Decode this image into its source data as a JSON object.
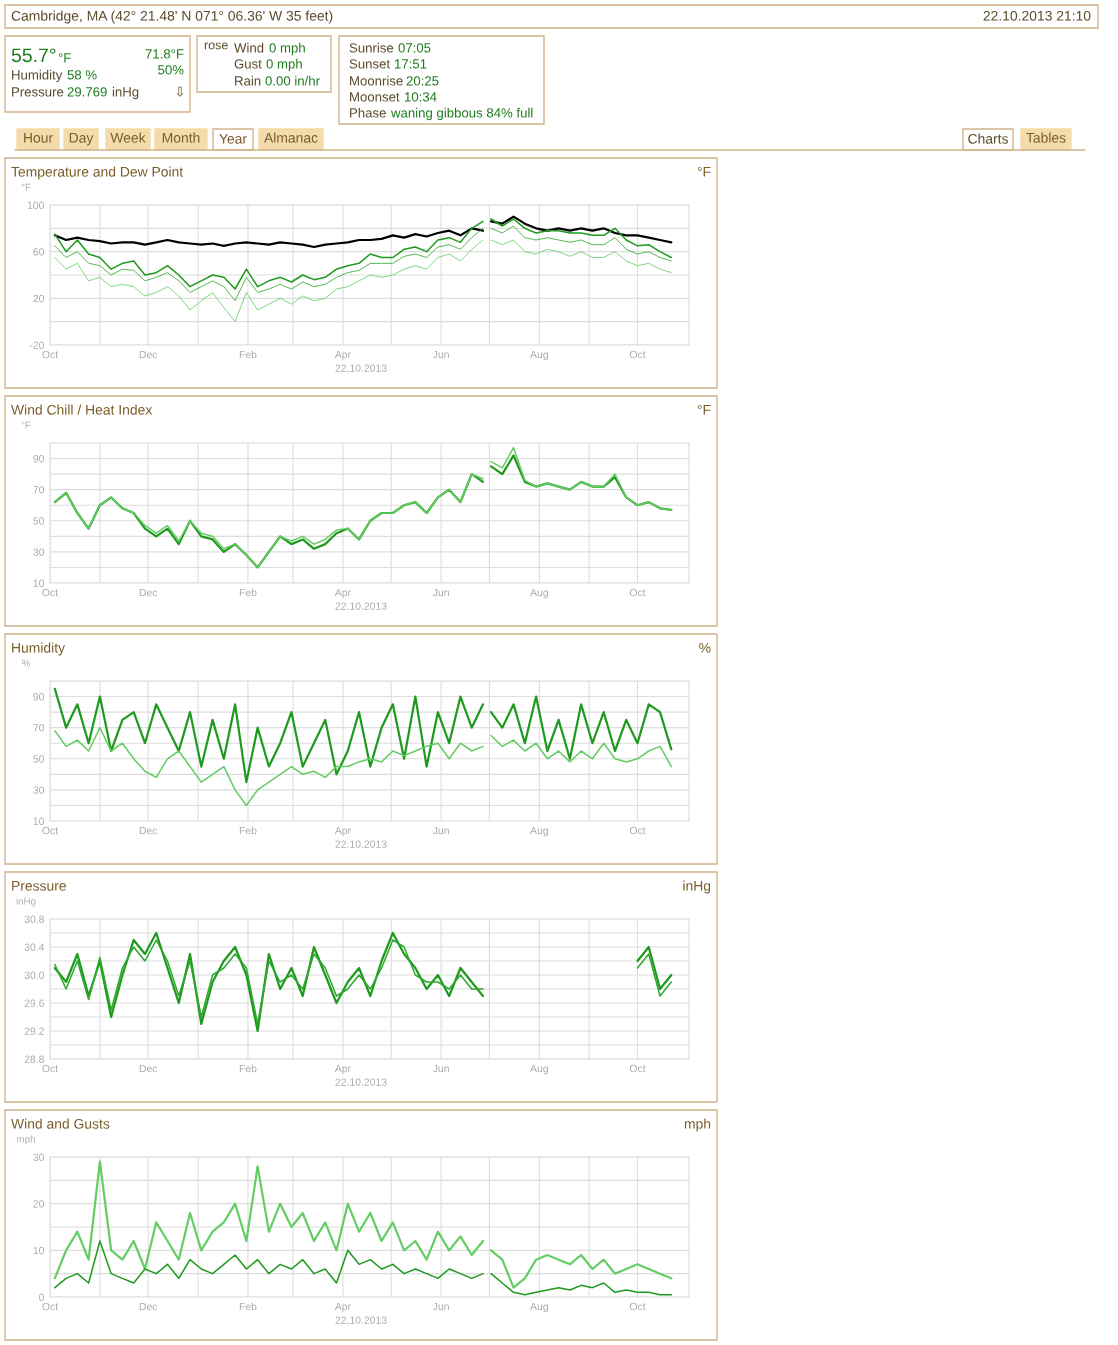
{
  "chart_data": [
    {
      "type": "other",
      "annotations": [
        "Cambridge, MA (42° 21.48' N 071° 06.36' W 35 feet)",
        "22.10.2013 21:10",
        "55.7°",
        "°F",
        "71.8°F",
        "Humidity",
        "58 %",
        "50%",
        "Pressure",
        "29.769",
        "inHg",
        "⇩",
        "rose",
        "Wind",
        "0 mph",
        "Gust",
        "0 mph",
        "Rain",
        "0.00 in/hr",
        "Sunrise",
        "07:05",
        "Sunset",
        "17:51",
        "Moonrise",
        "20:25",
        "Moonset",
        "10:34",
        "Phase",
        "waning gibbous 84% full",
        "Hour",
        "Day",
        "Week",
        "Month",
        "Year",
        "Almanac",
        "Charts",
        "Tables"
      ]
    },
    {
      "type": "line",
      "title": "Temperature and Dew Point",
      "ylabel": "°F",
      "xlabel": "22.10.2013",
      "annotations": [
        "°F"
      ],
      "grid": true,
      "x": [
        "2012-10-04",
        "2012-10-11",
        "2012-10-18",
        "2012-10-25",
        "2012-11-01",
        "2012-11-08",
        "2012-11-15",
        "2012-11-22",
        "2012-11-29",
        "2012-12-06",
        "2012-12-13",
        "2012-12-20",
        "2012-12-27",
        "2013-01-03",
        "2013-01-10",
        "2013-01-17",
        "2013-01-24",
        "2013-01-31",
        "2013-02-07",
        "2013-02-14",
        "2013-02-21",
        "2013-02-28",
        "2013-03-07",
        "2013-03-14",
        "2013-03-21",
        "2013-03-28",
        "2013-04-04",
        "2013-04-11",
        "2013-04-18",
        "2013-04-25",
        "2013-05-02",
        "2013-05-09",
        "2013-05-16",
        "2013-05-23",
        "2013-05-30",
        "2013-06-06",
        "2013-06-13",
        "2013-06-20",
        "2013-06-27",
        "2013-06-29",
        "2013-07-02",
        "2013-07-09",
        "2013-07-16",
        "2013-07-23",
        "2013-07-30",
        "2013-08-06",
        "2013-08-13",
        "2013-08-20",
        "2013-08-27",
        "2013-09-03",
        "2013-09-10",
        "2013-09-17",
        "2013-09-24",
        "2013-10-01",
        "2013-10-08",
        "2013-10-15",
        "2013-10-22"
      ],
      "xlim": [
        "2012-10-01",
        "2013-11-02"
      ],
      "xticks": [
        {
          "value": "2012-10-01",
          "label": "Oct"
        },
        {
          "value": "2012-11-01",
          "label": null
        },
        {
          "value": "2012-12-01",
          "label": "Dec"
        },
        {
          "value": "2013-01-01",
          "label": null
        },
        {
          "value": "2013-02-01",
          "label": "Feb"
        },
        {
          "value": "2013-03-01",
          "label": null
        },
        {
          "value": "2013-04-01",
          "label": "Apr"
        },
        {
          "value": "2013-05-01",
          "label": null
        },
        {
          "value": "2013-06-01",
          "label": "Jun"
        },
        {
          "value": "2013-07-01",
          "label": null
        },
        {
          "value": "2013-08-01",
          "label": "Aug"
        },
        {
          "value": "2013-09-01",
          "label": null
        },
        {
          "value": "2013-10-01",
          "label": "Oct"
        }
      ],
      "ylim": [
        -20,
        100
      ],
      "yticks": [
        -20,
        {
          "value": 0,
          "label": null
        },
        20,
        {
          "value": 40,
          "label": null
        },
        60,
        {
          "value": 80,
          "label": null
        },
        100
      ],
      "series": [
        {
          "color": "#000000",
          "values": [
            74,
            70,
            72,
            70,
            69,
            67,
            68,
            68,
            66,
            68,
            70,
            68,
            67,
            66,
            67,
            65,
            67,
            68,
            67,
            66,
            68,
            67,
            66,
            64,
            66,
            67,
            68,
            70,
            70,
            71,
            74,
            72,
            75,
            73,
            76,
            78,
            74,
            80,
            78,
            null,
            86,
            84,
            90,
            84,
            80,
            78,
            80,
            78,
            80,
            78,
            80,
            76,
            74,
            74,
            72,
            70,
            68
          ]
        },
        {
          "color": "#1f9a1f",
          "values": [
            75,
            60,
            70,
            58,
            55,
            45,
            50,
            52,
            40,
            42,
            48,
            40,
            30,
            35,
            40,
            38,
            28,
            45,
            30,
            35,
            38,
            34,
            40,
            36,
            38,
            45,
            48,
            50,
            58,
            55,
            55,
            62,
            64,
            60,
            70,
            72,
            68,
            80,
            86,
            null,
            88,
            82,
            88,
            80,
            76,
            78,
            78,
            76,
            76,
            74,
            74,
            80,
            70,
            65,
            66,
            60,
            55
          ]
        },
        {
          "color": "#33aa33",
          "values": [
            65,
            55,
            60,
            50,
            48,
            40,
            45,
            44,
            35,
            38,
            42,
            35,
            25,
            30,
            35,
            30,
            18,
            38,
            25,
            28,
            32,
            28,
            34,
            30,
            32,
            38,
            42,
            44,
            50,
            50,
            50,
            56,
            58,
            55,
            64,
            66,
            62,
            72,
            80,
            null,
            80,
            76,
            82,
            72,
            70,
            72,
            70,
            68,
            70,
            66,
            66,
            72,
            62,
            58,
            60,
            55,
            52
          ]
        },
        {
          "color": "#66cc66",
          "values": [
            55,
            45,
            50,
            35,
            38,
            30,
            32,
            30,
            22,
            25,
            30,
            22,
            10,
            18,
            25,
            12,
            0,
            25,
            10,
            15,
            20,
            15,
            22,
            18,
            20,
            28,
            30,
            35,
            40,
            38,
            40,
            45,
            48,
            45,
            55,
            58,
            52,
            62,
            70,
            null,
            70,
            66,
            70,
            60,
            58,
            62,
            60,
            56,
            60,
            55,
            55,
            60,
            52,
            48,
            50,
            45,
            42
          ]
        }
      ]
    },
    {
      "type": "line",
      "title": "Wind Chill / Heat Index",
      "ylabel": "°F",
      "xlabel": "22.10.2013",
      "annotations": [
        "°F"
      ],
      "grid": true,
      "x": [
        "2012-10-04",
        "2012-10-11",
        "2012-10-18",
        "2012-10-25",
        "2012-11-01",
        "2012-11-08",
        "2012-11-15",
        "2012-11-22",
        "2012-11-29",
        "2012-12-06",
        "2012-12-13",
        "2012-12-20",
        "2012-12-27",
        "2013-01-03",
        "2013-01-10",
        "2013-01-17",
        "2013-01-24",
        "2013-01-31",
        "2013-02-07",
        "2013-02-14",
        "2013-02-21",
        "2013-02-28",
        "2013-03-07",
        "2013-03-14",
        "2013-03-21",
        "2013-03-28",
        "2013-04-04",
        "2013-04-11",
        "2013-04-18",
        "2013-04-25",
        "2013-05-02",
        "2013-05-09",
        "2013-05-16",
        "2013-05-23",
        "2013-05-30",
        "2013-06-06",
        "2013-06-13",
        "2013-06-20",
        "2013-06-27",
        "2013-06-29",
        "2013-07-02",
        "2013-07-09",
        "2013-07-16",
        "2013-07-23",
        "2013-07-30",
        "2013-08-06",
        "2013-08-13",
        "2013-08-20",
        "2013-08-27",
        "2013-09-03",
        "2013-09-10",
        "2013-09-17",
        "2013-09-24",
        "2013-10-01",
        "2013-10-08",
        "2013-10-15",
        "2013-10-22"
      ],
      "xlim": [
        "2012-10-01",
        "2013-11-02"
      ],
      "xticks": [
        {
          "value": "2012-10-01",
          "label": "Oct"
        },
        {
          "value": "2012-11-01",
          "label": null
        },
        {
          "value": "2012-12-01",
          "label": "Dec"
        },
        {
          "value": "2013-01-01",
          "label": null
        },
        {
          "value": "2013-02-01",
          "label": "Feb"
        },
        {
          "value": "2013-03-01",
          "label": null
        },
        {
          "value": "2013-04-01",
          "label": "Apr"
        },
        {
          "value": "2013-05-01",
          "label": null
        },
        {
          "value": "2013-06-01",
          "label": "Jun"
        },
        {
          "value": "2013-07-01",
          "label": null
        },
        {
          "value": "2013-08-01",
          "label": "Aug"
        },
        {
          "value": "2013-09-01",
          "label": null
        },
        {
          "value": "2013-10-01",
          "label": "Oct"
        }
      ],
      "ylim": [
        10,
        100
      ],
      "yticks": [
        10,
        {
          "value": 20,
          "label": null
        },
        30,
        {
          "value": 40,
          "label": null
        },
        50,
        {
          "value": 60,
          "label": null
        },
        70,
        {
          "value": 80,
          "label": null
        },
        90,
        {
          "value": 100,
          "label": null
        }
      ],
      "series": [
        {
          "color": "#1f9a1f",
          "values": [
            62,
            68,
            55,
            45,
            60,
            65,
            58,
            55,
            45,
            40,
            45,
            35,
            50,
            40,
            38,
            30,
            35,
            28,
            20,
            30,
            40,
            35,
            38,
            32,
            35,
            42,
            45,
            38,
            50,
            55,
            55,
            60,
            62,
            55,
            65,
            70,
            62,
            80,
            75,
            null,
            85,
            80,
            92,
            75,
            72,
            74,
            72,
            70,
            75,
            72,
            72,
            78,
            65,
            60,
            62,
            58,
            57
          ]
        },
        {
          "color": "#66cc66",
          "values": [
            62,
            68,
            55,
            45,
            60,
            65,
            58,
            55,
            47,
            42,
            47,
            37,
            50,
            42,
            40,
            32,
            35,
            28,
            20,
            30,
            40,
            37,
            40,
            35,
            38,
            44,
            45,
            38,
            50,
            55,
            55,
            60,
            62,
            55,
            65,
            70,
            62,
            80,
            77,
            null,
            88,
            84,
            97,
            76,
            72,
            74,
            72,
            70,
            75,
            72,
            72,
            80,
            65,
            60,
            62,
            58,
            57
          ]
        }
      ]
    },
    {
      "type": "line",
      "title": "Humidity",
      "ylabel": "%",
      "xlabel": "22.10.2013",
      "annotations": [
        "%"
      ],
      "grid": true,
      "x": [
        "2012-10-04",
        "2012-10-11",
        "2012-10-18",
        "2012-10-25",
        "2012-11-01",
        "2012-11-08",
        "2012-11-15",
        "2012-11-22",
        "2012-11-29",
        "2012-12-06",
        "2012-12-13",
        "2012-12-20",
        "2012-12-27",
        "2013-01-03",
        "2013-01-10",
        "2013-01-17",
        "2013-01-24",
        "2013-01-31",
        "2013-02-07",
        "2013-02-14",
        "2013-02-21",
        "2013-02-28",
        "2013-03-07",
        "2013-03-14",
        "2013-03-21",
        "2013-03-28",
        "2013-04-04",
        "2013-04-11",
        "2013-04-18",
        "2013-04-25",
        "2013-05-02",
        "2013-05-09",
        "2013-05-16",
        "2013-05-23",
        "2013-05-30",
        "2013-06-06",
        "2013-06-13",
        "2013-06-20",
        "2013-06-27",
        "2013-06-29",
        "2013-07-02",
        "2013-07-09",
        "2013-07-16",
        "2013-07-23",
        "2013-07-30",
        "2013-08-06",
        "2013-08-13",
        "2013-08-20",
        "2013-08-27",
        "2013-09-03",
        "2013-09-10",
        "2013-09-17",
        "2013-09-24",
        "2013-10-01",
        "2013-10-08",
        "2013-10-15",
        "2013-10-22"
      ],
      "xlim": [
        "2012-10-01",
        "2013-11-02"
      ],
      "xticks": [
        {
          "value": "2012-10-01",
          "label": "Oct"
        },
        {
          "value": "2012-11-01",
          "label": null
        },
        {
          "value": "2012-12-01",
          "label": "Dec"
        },
        {
          "value": "2013-01-01",
          "label": null
        },
        {
          "value": "2013-02-01",
          "label": "Feb"
        },
        {
          "value": "2013-03-01",
          "label": null
        },
        {
          "value": "2013-04-01",
          "label": "Apr"
        },
        {
          "value": "2013-05-01",
          "label": null
        },
        {
          "value": "2013-06-01",
          "label": "Jun"
        },
        {
          "value": "2013-07-01",
          "label": null
        },
        {
          "value": "2013-08-01",
          "label": "Aug"
        },
        {
          "value": "2013-09-01",
          "label": null
        },
        {
          "value": "2013-10-01",
          "label": "Oct"
        }
      ],
      "ylim": [
        10,
        100
      ],
      "yticks": [
        10,
        {
          "value": 20,
          "label": null
        },
        30,
        {
          "value": 40,
          "label": null
        },
        50,
        {
          "value": 60,
          "label": null
        },
        70,
        {
          "value": 80,
          "label": null
        },
        90,
        {
          "value": 100,
          "label": null
        }
      ],
      "series": [
        {
          "color": "#1f9a1f",
          "values": [
            95,
            70,
            85,
            60,
            90,
            55,
            75,
            80,
            60,
            85,
            70,
            55,
            80,
            45,
            75,
            50,
            85,
            35,
            70,
            45,
            60,
            80,
            45,
            60,
            75,
            40,
            55,
            80,
            45,
            70,
            85,
            50,
            90,
            45,
            80,
            60,
            90,
            70,
            85,
            null,
            80,
            70,
            85,
            60,
            90,
            55,
            75,
            50,
            85,
            60,
            80,
            55,
            75,
            60,
            85,
            80,
            56
          ]
        },
        {
          "color": "#66cc66",
          "values": [
            68,
            58,
            62,
            55,
            70,
            55,
            60,
            50,
            42,
            38,
            50,
            55,
            45,
            35,
            40,
            45,
            30,
            20,
            30,
            35,
            40,
            45,
            40,
            42,
            38,
            45,
            45,
            48,
            50,
            48,
            55,
            52,
            55,
            58,
            60,
            50,
            60,
            55,
            58,
            null,
            65,
            58,
            62,
            55,
            60,
            50,
            55,
            48,
            55,
            50,
            60,
            50,
            48,
            50,
            55,
            58,
            45
          ]
        }
      ]
    },
    {
      "type": "line",
      "title": "Pressure",
      "ylabel": "inHg",
      "xlabel": "22.10.2013",
      "annotations": [
        "inHg"
      ],
      "grid": true,
      "x": [
        "2012-10-04",
        "2012-10-11",
        "2012-10-18",
        "2012-10-25",
        "2012-11-01",
        "2012-11-08",
        "2012-11-15",
        "2012-11-22",
        "2012-11-29",
        "2012-12-06",
        "2012-12-13",
        "2012-12-20",
        "2012-12-27",
        "2013-01-03",
        "2013-01-10",
        "2013-01-17",
        "2013-01-24",
        "2013-01-31",
        "2013-02-07",
        "2013-02-14",
        "2013-02-21",
        "2013-02-28",
        "2013-03-07",
        "2013-03-14",
        "2013-03-21",
        "2013-03-28",
        "2013-04-04",
        "2013-04-11",
        "2013-04-18",
        "2013-04-25",
        "2013-05-02",
        "2013-05-09",
        "2013-05-16",
        "2013-05-23",
        "2013-05-30",
        "2013-06-06",
        "2013-06-13",
        "2013-06-20",
        "2013-06-27",
        "2013-06-29",
        "2013-07-02",
        "2013-07-09",
        "2013-07-16",
        "2013-07-23",
        "2013-07-30",
        "2013-08-06",
        "2013-08-13",
        "2013-08-20",
        "2013-08-27",
        "2013-09-03",
        "2013-09-10",
        "2013-09-17",
        "2013-09-24",
        "2013-10-01",
        "2013-10-08",
        "2013-10-15",
        "2013-10-22"
      ],
      "xlim": [
        "2012-10-01",
        "2013-11-02"
      ],
      "xticks": [
        {
          "value": "2012-10-01",
          "label": "Oct"
        },
        {
          "value": "2012-11-01",
          "label": null
        },
        {
          "value": "2012-12-01",
          "label": "Dec"
        },
        {
          "value": "2013-01-01",
          "label": null
        },
        {
          "value": "2013-02-01",
          "label": "Feb"
        },
        {
          "value": "2013-03-01",
          "label": null
        },
        {
          "value": "2013-04-01",
          "label": "Apr"
        },
        {
          "value": "2013-05-01",
          "label": null
        },
        {
          "value": "2013-06-01",
          "label": "Jun"
        },
        {
          "value": "2013-07-01",
          "label": null
        },
        {
          "value": "2013-08-01",
          "label": "Aug"
        },
        {
          "value": "2013-09-01",
          "label": null
        },
        {
          "value": "2013-10-01",
          "label": "Oct"
        }
      ],
      "ylim": [
        28.8,
        30.8
      ],
      "yticks": [
        28.8,
        {
          "value": 29.0,
          "label": null
        },
        29.2,
        {
          "value": 29.4,
          "label": null
        },
        29.6,
        {
          "value": 29.8,
          "label": null
        },
        {
          "value": 30.0,
          "label": "30.0"
        },
        {
          "value": 30.2,
          "label": null
        },
        30.4,
        {
          "value": 30.6,
          "label": null
        },
        30.8
      ],
      "series": [
        {
          "color": "#1f9a1f",
          "values": [
            30.1,
            29.9,
            30.3,
            29.7,
            30.2,
            29.4,
            30.0,
            30.5,
            30.3,
            30.6,
            30.1,
            29.6,
            30.3,
            29.3,
            29.9,
            30.2,
            30.4,
            30.0,
            29.2,
            30.3,
            29.8,
            30.1,
            29.7,
            30.4,
            30.0,
            29.6,
            29.9,
            30.1,
            29.7,
            30.2,
            30.6,
            30.3,
            30.1,
            29.8,
            30.0,
            29.7,
            30.1,
            29.9,
            29.7,
            null,
            null,
            null,
            null,
            null,
            null,
            null,
            null,
            null,
            null,
            null,
            null,
            null,
            null,
            30.2,
            30.4,
            29.8,
            30.0
          ]
        },
        {
          "color": "#2ea82e",
          "values": [
            30.15,
            29.8,
            30.2,
            29.65,
            30.25,
            29.5,
            30.1,
            30.4,
            30.2,
            30.5,
            30.2,
            29.7,
            30.2,
            29.4,
            30.0,
            30.1,
            30.3,
            30.1,
            29.3,
            30.2,
            29.9,
            30.0,
            29.8,
            30.3,
            30.1,
            29.7,
            29.8,
            30.0,
            29.8,
            30.1,
            30.5,
            30.4,
            30.0,
            29.9,
            29.9,
            29.8,
            30.0,
            29.8,
            29.8,
            null,
            null,
            null,
            null,
            null,
            null,
            null,
            null,
            null,
            null,
            null,
            null,
            null,
            null,
            30.1,
            30.3,
            29.7,
            29.9
          ]
        }
      ]
    },
    {
      "type": "line",
      "title": "Wind and Gusts",
      "ylabel": "mph",
      "xlabel": "22.10.2013",
      "annotations": [
        "mph"
      ],
      "grid": true,
      "x": [
        "2012-10-04",
        "2012-10-11",
        "2012-10-18",
        "2012-10-25",
        "2012-11-01",
        "2012-11-08",
        "2012-11-15",
        "2012-11-22",
        "2012-11-29",
        "2012-12-06",
        "2012-12-13",
        "2012-12-20",
        "2012-12-27",
        "2013-01-03",
        "2013-01-10",
        "2013-01-17",
        "2013-01-24",
        "2013-01-31",
        "2013-02-07",
        "2013-02-14",
        "2013-02-21",
        "2013-02-28",
        "2013-03-07",
        "2013-03-14",
        "2013-03-21",
        "2013-03-28",
        "2013-04-04",
        "2013-04-11",
        "2013-04-18",
        "2013-04-25",
        "2013-05-02",
        "2013-05-09",
        "2013-05-16",
        "2013-05-23",
        "2013-05-30",
        "2013-06-06",
        "2013-06-13",
        "2013-06-20",
        "2013-06-27",
        "2013-06-29",
        "2013-07-02",
        "2013-07-09",
        "2013-07-16",
        "2013-07-23",
        "2013-07-30",
        "2013-08-06",
        "2013-08-13",
        "2013-08-20",
        "2013-08-27",
        "2013-09-03",
        "2013-09-10",
        "2013-09-17",
        "2013-09-24",
        "2013-10-01",
        "2013-10-08",
        "2013-10-15",
        "2013-10-22"
      ],
      "xlim": [
        "2012-10-01",
        "2013-11-02"
      ],
      "xticks": [
        {
          "value": "2012-10-01",
          "label": "Oct"
        },
        {
          "value": "2012-11-01",
          "label": null
        },
        {
          "value": "2012-12-01",
          "label": "Dec"
        },
        {
          "value": "2013-01-01",
          "label": null
        },
        {
          "value": "2013-02-01",
          "label": "Feb"
        },
        {
          "value": "2013-03-01",
          "label": null
        },
        {
          "value": "2013-04-01",
          "label": "Apr"
        },
        {
          "value": "2013-05-01",
          "label": null
        },
        {
          "value": "2013-06-01",
          "label": "Jun"
        },
        {
          "value": "2013-07-01",
          "label": null
        },
        {
          "value": "2013-08-01",
          "label": "Aug"
        },
        {
          "value": "2013-09-01",
          "label": null
        },
        {
          "value": "2013-10-01",
          "label": "Oct"
        }
      ],
      "ylim": [
        0,
        30
      ],
      "yticks": [
        0,
        {
          "value": 5,
          "label": null
        },
        10,
        {
          "value": 15,
          "label": null
        },
        20,
        {
          "value": 25,
          "label": null
        },
        30
      ],
      "series": [
        {
          "color": "#66cc66",
          "values": [
            4,
            10,
            14,
            8,
            29,
            10,
            8,
            12,
            6,
            16,
            12,
            8,
            18,
            10,
            14,
            16,
            20,
            12,
            28,
            14,
            20,
            15,
            18,
            12,
            16,
            10,
            20,
            14,
            18,
            12,
            16,
            10,
            12,
            8,
            14,
            10,
            13,
            9,
            12,
            null,
            10,
            8,
            2,
            4,
            8,
            9,
            8,
            7,
            9,
            6,
            8,
            5,
            6,
            7,
            6,
            5,
            4
          ]
        },
        {
          "color": "#1f9a1f",
          "values": [
            2,
            4,
            5,
            3,
            12,
            5,
            4,
            3,
            6,
            5,
            7,
            4,
            8,
            6,
            5,
            7,
            9,
            6,
            8,
            5,
            7,
            6,
            8,
            5,
            6,
            3,
            10,
            7,
            8,
            6,
            7,
            5,
            6,
            5,
            4,
            6,
            5,
            4,
            5,
            null,
            5,
            3,
            1,
            0.5,
            1,
            1.5,
            2,
            1.5,
            2.5,
            2,
            3,
            1,
            1.5,
            1,
            1,
            0.5,
            0.5
          ]
        }
      ]
    }
  ]
}
